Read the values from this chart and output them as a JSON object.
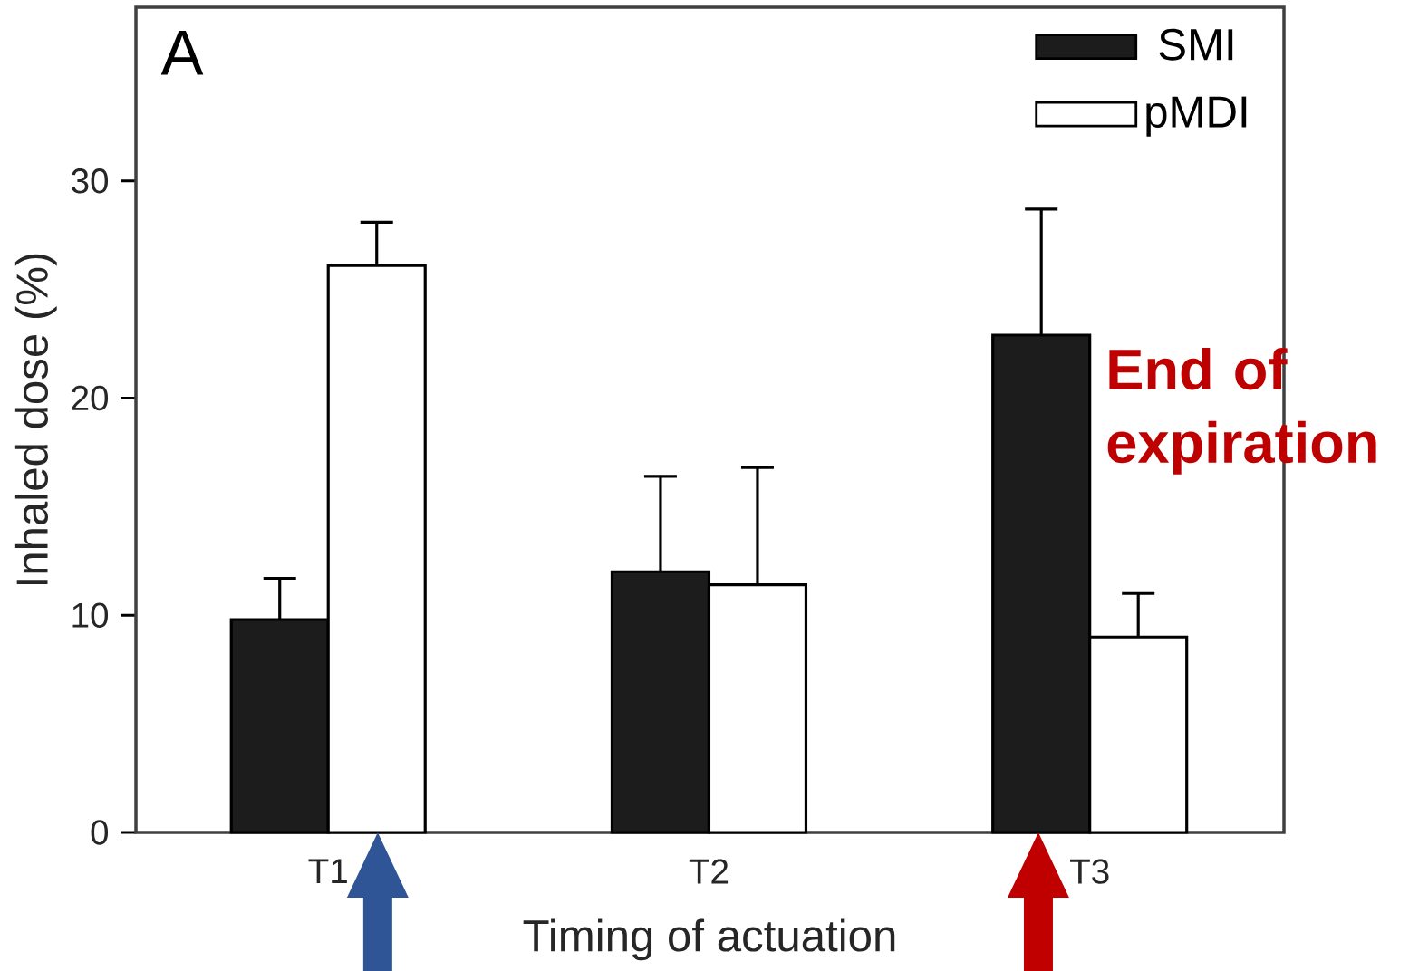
{
  "chart_data": {
    "type": "bar",
    "xlabel": "Timing of actuation",
    "ylabel": "Inhaled dose (%)",
    "categories": [
      "T1",
      "T2",
      "T3"
    ],
    "series": [
      {
        "name": "SMI",
        "color": "#1c1c1c",
        "values": [
          9.8,
          12.0,
          22.9
        ],
        "errors": [
          [
            9.8,
            11.7
          ],
          [
            12.0,
            16.4
          ],
          [
            22.9,
            28.7
          ]
        ]
      },
      {
        "name": "pMDI",
        "color": "#ffffff",
        "values": [
          26.1,
          11.4,
          9.0
        ],
        "errors": [
          [
            26.1,
            28.1
          ],
          [
            11.4,
            16.8
          ],
          [
            9.0,
            11.0
          ]
        ]
      }
    ],
    "ylim": [
      0,
      38
    ],
    "yticks": [
      0,
      10,
      20,
      30
    ],
    "legend": "top right",
    "grid": false,
    "annotations": [
      "A",
      "End of expiration"
    ]
  }
}
